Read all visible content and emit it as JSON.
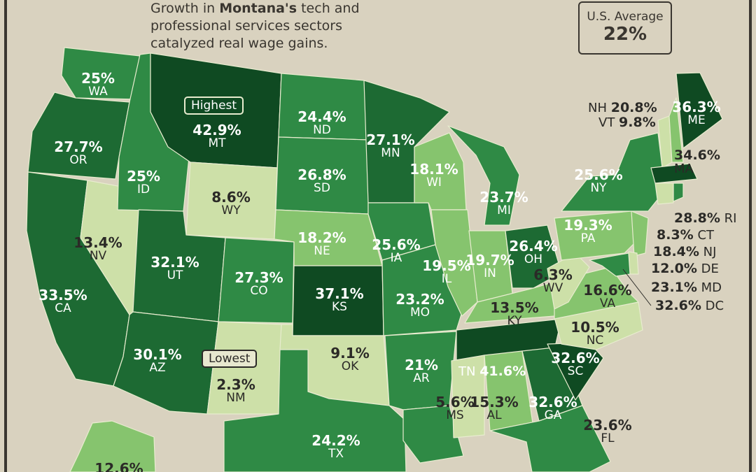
{
  "intro": {
    "pre": "Growth in ",
    "bold": "Montana's",
    "post": " tech and",
    "line2": "professional services sectors",
    "line3": "catalyzed real wage gains."
  },
  "average": {
    "label": "U.S. Average",
    "value": "22%"
  },
  "tags": {
    "highest": "Highest",
    "lowest": "Lowest"
  },
  "colors": {
    "darkest": "#0f4a22",
    "dark": "#1d6a33",
    "medium": "#2f8a45",
    "light": "#86c46e",
    "pale": "#cde0a8",
    "background": "#d9d2bf"
  },
  "states": {
    "WA": {
      "pct": "25%",
      "abbr": "WA"
    },
    "OR": {
      "pct": "27.7%",
      "abbr": "OR"
    },
    "CA": {
      "pct": "33.5%",
      "abbr": "CA"
    },
    "NV": {
      "pct": "13.4%",
      "abbr": "NV"
    },
    "ID": {
      "pct": "25%",
      "abbr": "ID"
    },
    "MT": {
      "pct": "42.9%",
      "abbr": "MT"
    },
    "WY": {
      "pct": "8.6%",
      "abbr": "WY"
    },
    "UT": {
      "pct": "32.1%",
      "abbr": "UT"
    },
    "AZ": {
      "pct": "30.1%",
      "abbr": "AZ"
    },
    "CO": {
      "pct": "27.3%",
      "abbr": "CO"
    },
    "NM": {
      "pct": "2.3%",
      "abbr": "NM"
    },
    "ND": {
      "pct": "24.4%",
      "abbr": "ND"
    },
    "SD": {
      "pct": "26.8%",
      "abbr": "SD"
    },
    "NE": {
      "pct": "18.2%",
      "abbr": "NE"
    },
    "KS": {
      "pct": "37.1%",
      "abbr": "KS"
    },
    "OK": {
      "pct": "9.1%",
      "abbr": "OK"
    },
    "TX": {
      "pct": "24.2%",
      "abbr": "TX"
    },
    "MN": {
      "pct": "27.1%",
      "abbr": "MN"
    },
    "IA": {
      "pct": "25.6%",
      "abbr": "IA"
    },
    "MO": {
      "pct": "23.2%",
      "abbr": "MO"
    },
    "AR": {
      "pct": "21%",
      "abbr": "AR"
    },
    "WI": {
      "pct": "18.1%",
      "abbr": "WI"
    },
    "IL": {
      "pct": "19.5%",
      "abbr": "IL"
    },
    "MI": {
      "pct": "23.7%",
      "abbr": "MI"
    },
    "IN": {
      "pct": "19.7%",
      "abbr": "IN"
    },
    "OH": {
      "pct": "26.4%",
      "abbr": "OH"
    },
    "KY": {
      "pct": "13.5%",
      "abbr": "KY"
    },
    "TN": {
      "pct": "41.6%",
      "abbr": "TN"
    },
    "MS": {
      "pct": "5.6%",
      "abbr": "MS"
    },
    "AL": {
      "pct": "15.3%",
      "abbr": "AL"
    },
    "GA": {
      "pct": "32.6%",
      "abbr": "GA"
    },
    "SC": {
      "pct": "32.6%",
      "abbr": "SC"
    },
    "NC": {
      "pct": "10.5%",
      "abbr": "NC"
    },
    "VA": {
      "pct": "16.6%",
      "abbr": "VA"
    },
    "WV": {
      "pct": "6.3%",
      "abbr": "WV"
    },
    "PA": {
      "pct": "19.3%",
      "abbr": "PA"
    },
    "NY": {
      "pct": "25.6%",
      "abbr": "NY"
    },
    "ME": {
      "pct": "36.3%",
      "abbr": "ME"
    },
    "MA": {
      "pct": "34.6%",
      "abbr": "MA"
    },
    "NH": {
      "pct": "20.8%",
      "abbr": "NH"
    },
    "VT": {
      "pct": "9.8%",
      "abbr": "VT"
    },
    "RI": {
      "pct": "28.8%",
      "abbr": "RI"
    },
    "CT": {
      "pct": "8.3%",
      "abbr": "CT"
    },
    "NJ": {
      "pct": "18.4%",
      "abbr": "NJ"
    },
    "DE": {
      "pct": "12.0%",
      "abbr": "DE"
    },
    "MD": {
      "pct": "23.1%",
      "abbr": "MD"
    },
    "DC": {
      "pct": "32.6%",
      "abbr": "DC"
    },
    "FL": {
      "pct": "23.6%",
      "abbr": "FL"
    },
    "AK": {
      "pct": "12.6%"
    }
  }
}
